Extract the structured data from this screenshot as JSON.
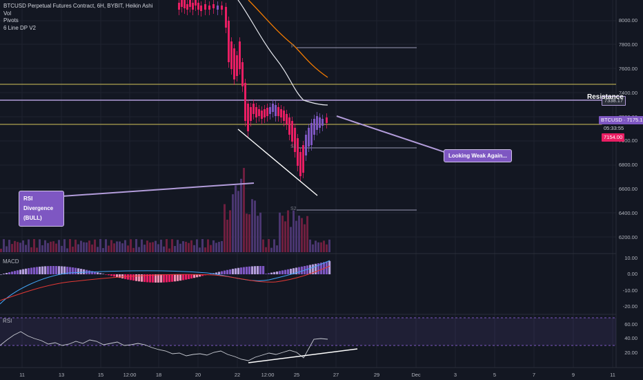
{
  "legend": {
    "title": "BTCUSD Perpetual Futures Contract, 6H, BYBIT, Heikin Ashi",
    "lines": [
      "Vol",
      "Pivots",
      "6 Line DP V2"
    ]
  },
  "price_axis": [
    "8000.00",
    "7800.00",
    "7600.00",
    "7400.00",
    "7200.00",
    "7000.00",
    "6800.00",
    "6600.00",
    "6400.00",
    "6200.00"
  ],
  "macd_axis": [
    "10.00",
    "0.00",
    "-10.00",
    "-20.00"
  ],
  "rsi_axis": [
    "60.00",
    "40.00",
    "20.00"
  ],
  "x_axis": [
    "11",
    "13",
    "15",
    "12:00",
    "18",
    "20",
    "22",
    "12:00",
    "25",
    "27",
    "29",
    "Dec",
    "3",
    "5",
    "7",
    "9",
    "11"
  ],
  "price_tags": {
    "resistance_value": "7338.17",
    "symbol_tag": "BTCUSD · 7175.13",
    "countdown": "05:33:55",
    "low_tag": "7154.00"
  },
  "panes": {
    "macd": "MACD",
    "rsi": "RSI"
  },
  "annotations": {
    "resistance": "Resistance",
    "weak": "Looking Weak Again...",
    "divergence_title": "RSI Divergence",
    "divergence_sub": "(BULL)"
  },
  "pivots": {
    "p": "P",
    "s1": "S1",
    "s2": "S2"
  },
  "colors": {
    "background": "#131722",
    "bull_candle": "#7e57c2",
    "bear_candle": "#e91e63",
    "resistance_line": "#b39ddb",
    "yellow_level": "#d4c45a",
    "annotation_bg": "#7e57c2"
  }
}
